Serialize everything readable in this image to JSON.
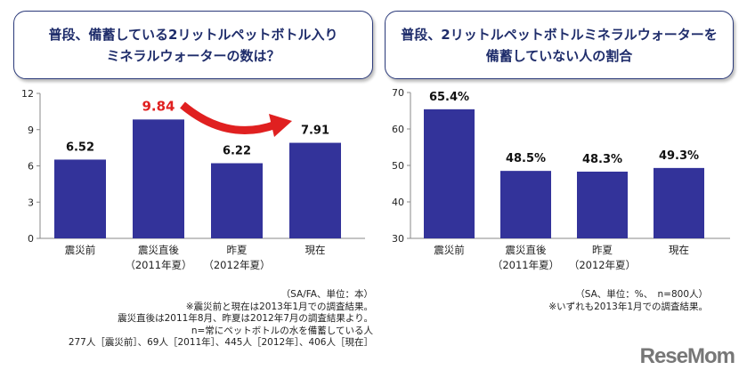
{
  "chart_data": [
    {
      "type": "bar",
      "title_lines": [
        "普段、備蓄している2リットルペットボトル入り",
        "ミネラルウォーターの数は？"
      ],
      "categories": [
        [
          "震災前",
          ""
        ],
        [
          "震災直後",
          "（2011年夏）"
        ],
        [
          "昨夏",
          "（2012年夏）"
        ],
        [
          "現在",
          ""
        ]
      ],
      "values": [
        6.52,
        9.84,
        6.22,
        7.91
      ],
      "labels": [
        "6.52",
        "9.84",
        "6.22",
        "7.91"
      ],
      "highlight_index": 1,
      "highlight_color": "#e02020",
      "ylim": [
        0,
        12
      ],
      "yticks": [
        0,
        3,
        6,
        9,
        12
      ],
      "bar_color": "#33339a",
      "notes": [
        "（SA/FA、単位：本）",
        "※震災前と現在は2013年1月での調査結果。",
        "震災直後は2011年8月、昨夏は2012年7月の調査結果より。",
        "n=常にペットボトルの水を備蓄している人",
        "277人［震災前］、69人［2011年］、445人［2012年］、406人［現在］"
      ]
    },
    {
      "type": "bar",
      "title_lines": [
        "普段、2リットルペットボトルミネラルウォーターを",
        "備蓄していない人の割合"
      ],
      "categories": [
        [
          "震災前",
          ""
        ],
        [
          "震災直後",
          "（2011年夏）"
        ],
        [
          "昨夏",
          "（2012年夏）"
        ],
        [
          "現在",
          ""
        ]
      ],
      "values": [
        65.4,
        48.5,
        48.3,
        49.3
      ],
      "labels": [
        "65.4%",
        "48.5%",
        "48.3%",
        "49.3%"
      ],
      "ylim": [
        30,
        70
      ],
      "yticks": [
        30,
        40,
        50,
        60,
        70
      ],
      "bar_color": "#33339a",
      "notes": [
        "（SA、単位：%、　n=800人）",
        "※いずれも2013年1月での調査結果。"
      ]
    }
  ],
  "logo": "ReseMom"
}
